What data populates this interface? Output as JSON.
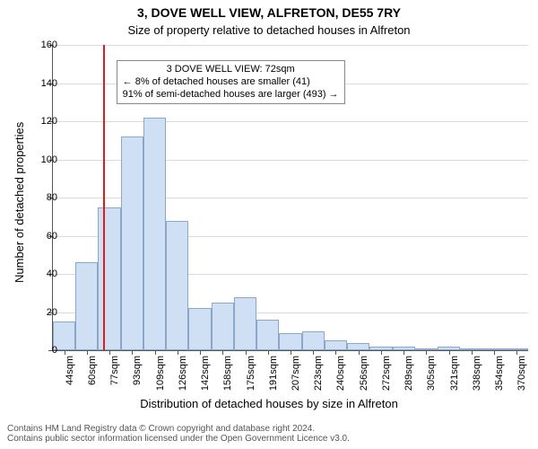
{
  "title": "3, DOVE WELL VIEW, ALFRETON, DE55 7RY",
  "subtitle": "Size of property relative to detached houses in Alfreton",
  "ylabel": "Number of detached properties",
  "xlabel": "Distribution of detached houses by size in Alfreton",
  "footer_line1": "Contains HM Land Registry data © Crown copyright and database right 2024.",
  "footer_line2": "Contains public sector information licensed under the Open Government Licence v3.0.",
  "chart": {
    "type": "histogram",
    "ylim": [
      0,
      160
    ],
    "ytick_step": 20,
    "categories": [
      "44sqm",
      "60sqm",
      "77sqm",
      "93sqm",
      "109sqm",
      "126sqm",
      "142sqm",
      "158sqm",
      "175sqm",
      "191sqm",
      "207sqm",
      "223sqm",
      "240sqm",
      "256sqm",
      "272sqm",
      "289sqm",
      "305sqm",
      "321sqm",
      "338sqm",
      "354sqm",
      "370sqm"
    ],
    "values": [
      15,
      46,
      75,
      112,
      122,
      68,
      22,
      25,
      28,
      16,
      9,
      10,
      5,
      4,
      2,
      2,
      1,
      2,
      1,
      1,
      1
    ],
    "bar_fill": "#cfe0f5",
    "bar_stroke": "#8aa6c9",
    "grid_color": "#dadada",
    "axis_color": "#555555",
    "background_color": "#ffffff",
    "tick_fontsize": 11,
    "label_fontsize": 13,
    "title_fontsize": 14,
    "subtitle_fontsize": 13,
    "footer_fontsize": 10,
    "annot_fontsize": 11,
    "marker": {
      "position_index_fractional": 1.7,
      "color": "#e11b1b"
    },
    "annotation": {
      "lines": [
        "3 DOVE WELL VIEW: 72sqm",
        "← 8% of detached houses are smaller (41)",
        "91% of semi-detached houses are larger (493) →"
      ],
      "x_offset_index": 2.3,
      "y_value": 152
    }
  }
}
